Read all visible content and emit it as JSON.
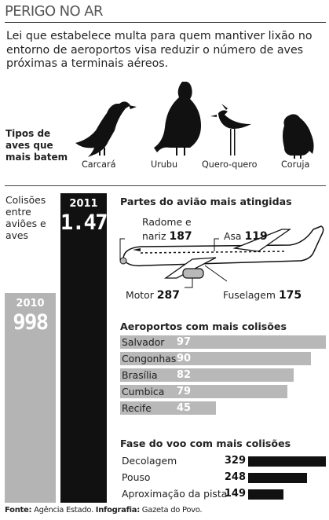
{
  "title": "PERIGO NO AR",
  "lead": "Lei que estabelece multa para quem mantiver lixão no entorno de aeroportos visa reduzir o número de aves próximas a terminais aéreos.",
  "birds": {
    "heading": [
      "Tipos de",
      "aves que",
      "mais batem"
    ],
    "items": [
      {
        "name": "Carcará",
        "icon": "carcara-bird-icon"
      },
      {
        "name": "Urubu",
        "icon": "urubu-bird-icon"
      },
      {
        "name": "Quero-quero",
        "icon": "quero-quero-bird-icon"
      },
      {
        "name": "Coruja",
        "icon": "coruja-bird-icon"
      }
    ]
  },
  "collisions": {
    "label": [
      "Colisões",
      "entre",
      "aviões e",
      "aves"
    ],
    "year_2010": "2010",
    "value_2010": "998",
    "year_2011": "2011",
    "value_2011": "1.470"
  },
  "parts": {
    "heading": "Partes do avião mais atingidas",
    "radome_label_1": "Radome e",
    "radome_label_2": "nariz",
    "radome_value": "187",
    "wing_label": "Asa",
    "wing_value": "119",
    "engine_label": "Motor",
    "engine_value": "287",
    "fuselage_label": "Fuselagem",
    "fuselage_value": "175"
  },
  "airports": {
    "heading": "Aeroportos com mais colisões",
    "rows": [
      {
        "name": "Salvador",
        "value": "97"
      },
      {
        "name": "Congonhas",
        "value": "90"
      },
      {
        "name": "Brasília",
        "value": "82"
      },
      {
        "name": "Cumbica",
        "value": "79"
      },
      {
        "name": "Recife",
        "value": "45"
      }
    ]
  },
  "phases": {
    "heading": "Fase do voo com mais colisões",
    "rows": [
      {
        "name": "Decolagem",
        "value": "329"
      },
      {
        "name": "Pouso",
        "value": "248"
      },
      {
        "name": "Aproximação da pista",
        "value": "149"
      }
    ]
  },
  "footer": {
    "source_label": "Fonte:",
    "source": "Agência Estado.",
    "infographic_label": "Infografia:",
    "infographic": "Gazeta do Povo."
  },
  "chart_data": [
    {
      "type": "bar",
      "categories": [
        "2010",
        "2011"
      ],
      "values": [
        998,
        1470
      ]
    },
    {
      "type": "bar",
      "title": "Aeroportos com mais colisões",
      "categories": [
        "Salvador",
        "Congonhas",
        "Brasília",
        "Cumbica",
        "Recife"
      ],
      "values": [
        97,
        90,
        82,
        79,
        45
      ]
    },
    {
      "type": "bar",
      "title": "Fase do voo com mais colisões",
      "categories": [
        "Decolagem",
        "Pouso",
        "Aproximação da pista"
      ],
      "values": [
        329,
        248,
        149
      ]
    }
  ]
}
